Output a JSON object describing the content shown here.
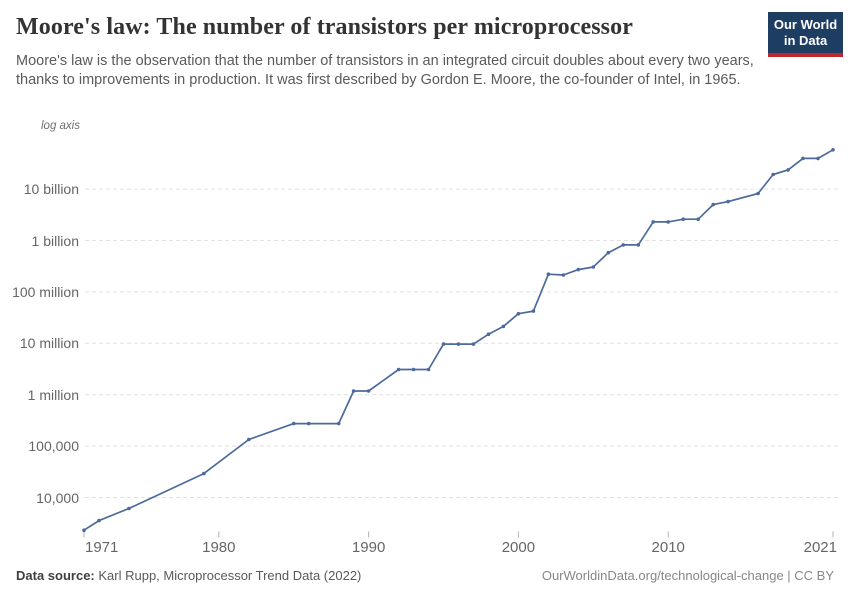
{
  "header": {
    "title": "Moore's law: The number of transistors per microprocessor",
    "subtitle": "Moore's law is the observation that the number of transistors in an integrated circuit doubles about every two years, thanks to improvements in production. It was first described by Gordon E. Moore, the co-founder of Intel, in 1965.",
    "logo": {
      "line1": "Our World",
      "line2": "in Data"
    }
  },
  "chart_data": {
    "type": "line",
    "title": "Moore's law: The number of transistors per microprocessor",
    "xlabel": "",
    "ylabel": "",
    "log_axis_note": "log axis",
    "y_scale": "log",
    "grid": true,
    "legend": false,
    "xlim": [
      1971,
      2021
    ],
    "ylim_log": [
      10000,
      10000000000
    ],
    "xticks": [
      {
        "value": 1971,
        "label": "1971"
      },
      {
        "value": 1980,
        "label": "1980"
      },
      {
        "value": 1990,
        "label": "1990"
      },
      {
        "value": 2000,
        "label": "2000"
      },
      {
        "value": 2010,
        "label": "2010"
      },
      {
        "value": 2021,
        "label": "2021"
      }
    ],
    "yticks": [
      {
        "value": 10000,
        "label": "10,000"
      },
      {
        "value": 100000,
        "label": "100,000"
      },
      {
        "value": 1000000,
        "label": "1 million"
      },
      {
        "value": 10000000,
        "label": "10 million"
      },
      {
        "value": 100000000,
        "label": "100 million"
      },
      {
        "value": 1000000000,
        "label": "1 billion"
      },
      {
        "value": 10000000000,
        "label": "10 billion"
      }
    ],
    "x": [
      1971,
      1972,
      1974,
      1979,
      1982,
      1985,
      1986,
      1988,
      1989,
      1990,
      1992,
      1993,
      1994,
      1995,
      1996,
      1997,
      1998,
      1999,
      2000,
      2001,
      2002,
      2003,
      2004,
      2005,
      2006,
      2007,
      2008,
      2009,
      2010,
      2011,
      2012,
      2013,
      2014,
      2016,
      2017,
      2018,
      2019,
      2020,
      2021
    ],
    "values": [
      2308,
      3555,
      6098,
      29163,
      134297,
      273842,
      273842,
      273842,
      1181644,
      1181644,
      3094784,
      3094784,
      3094784,
      9646680,
      9646680,
      9646680,
      15000000,
      21300000,
      37600000,
      42300000,
      220800000,
      213000000,
      271000000,
      305000000,
      580000000,
      820000000,
      820000000,
      2300000000,
      2300000000,
      2600000000,
      2600000000,
      5000000000,
      5700000000,
      8200000000,
      19200000000,
      23600000000,
      39500000000,
      39500000000,
      58200000000
    ]
  },
  "colors": {
    "line": "#4c6a9c",
    "grid": "#e0e0e0",
    "tick": "#b3b3b3",
    "axis_text": "#666666",
    "title": "#333333",
    "subtitle": "#5a5a5a",
    "logo_bg": "#1d3d63",
    "logo_red": "#c0272d"
  },
  "footer": {
    "source_label": "Data source:",
    "source_text": "Karl Rupp, Microprocessor Trend Data (2022)",
    "license_text": "OurWorldinData.org/technological-change | CC BY"
  }
}
